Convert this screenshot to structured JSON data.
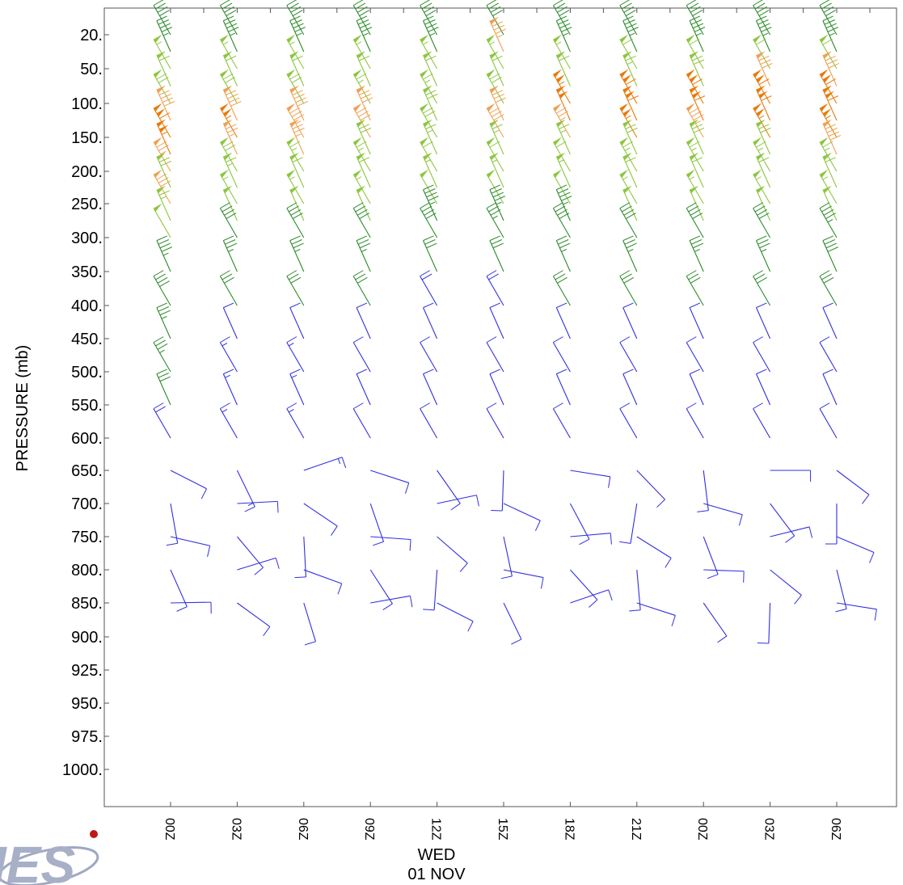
{
  "chart_data": {
    "type": "wind-barb time-height cross section",
    "ylabel": "PRESSURE (mb)",
    "y_ticks": [
      20,
      50,
      100,
      150,
      200,
      250,
      300,
      350,
      400,
      450,
      500,
      550,
      600,
      650,
      700,
      750,
      800,
      850,
      900,
      925,
      950,
      975,
      1000
    ],
    "y_tick_labels": [
      "20.",
      "50.",
      "100.",
      "150.",
      "200.",
      "250.",
      "300.",
      "350.",
      "400.",
      "450.",
      "500.",
      "550.",
      "600.",
      "650.",
      "700.",
      "750.",
      "800.",
      "850.",
      "900.",
      "925.",
      "950.",
      "975.",
      "1000."
    ],
    "x_tick_labels": [
      "00Z",
      "03Z",
      "06Z",
      "09Z",
      "12Z",
      "15Z",
      "18Z",
      "21Z",
      "00Z",
      "03Z",
      "06Z"
    ],
    "x_date_label_line1": "WED",
    "x_date_label_line2": "01 NOV",
    "color_scale": {
      "lt_25kt": "#3030e0",
      "25_50kt": "#2a8a2a",
      "50_75kt": "#8cc63f",
      "75_100kt": "#f0a050",
      "gt_100kt": "#e87a0a"
    },
    "barbs_kt": [
      [
        40,
        45,
        55,
        60,
        70,
        90,
        110,
        105,
        75,
        70,
        80,
        65,
        50,
        45,
        40,
        35,
        35,
        30,
        20,
        10,
        10,
        10,
        10,
        10
      ],
      [
        40,
        45,
        55,
        60,
        70,
        90,
        105,
        75,
        70,
        65,
        55,
        50,
        40,
        35,
        30,
        10,
        15,
        15,
        15,
        15,
        10,
        10,
        10,
        10
      ],
      [
        40,
        45,
        55,
        60,
        70,
        90,
        85,
        75,
        65,
        60,
        55,
        50,
        40,
        35,
        30,
        10,
        15,
        15,
        15,
        15,
        10,
        10,
        10,
        10
      ],
      [
        40,
        45,
        55,
        60,
        65,
        80,
        80,
        70,
        65,
        60,
        55,
        50,
        40,
        35,
        30,
        10,
        10,
        10,
        10,
        10,
        10,
        10,
        10,
        10
      ],
      [
        40,
        45,
        55,
        60,
        65,
        70,
        70,
        65,
        60,
        55,
        50,
        45,
        40,
        30,
        20,
        10,
        10,
        10,
        10,
        10,
        10,
        10,
        10,
        10
      ],
      [
        40,
        85,
        55,
        60,
        70,
        80,
        80,
        65,
        60,
        55,
        50,
        45,
        35,
        30,
        20,
        10,
        10,
        10,
        10,
        10,
        10,
        10,
        10,
        10
      ],
      [
        40,
        45,
        55,
        60,
        105,
        100,
        75,
        65,
        60,
        55,
        50,
        45,
        40,
        35,
        30,
        10,
        10,
        10,
        10,
        10,
        10,
        10,
        10,
        10
      ],
      [
        40,
        45,
        60,
        65,
        110,
        110,
        105,
        70,
        65,
        60,
        55,
        50,
        40,
        35,
        30,
        10,
        10,
        10,
        10,
        10,
        10,
        10,
        10,
        10
      ],
      [
        40,
        45,
        60,
        70,
        110,
        110,
        85,
        70,
        65,
        60,
        55,
        50,
        40,
        35,
        30,
        10,
        10,
        10,
        10,
        10,
        10,
        10,
        10,
        10
      ],
      [
        40,
        45,
        60,
        80,
        110,
        110,
        105,
        70,
        65,
        60,
        55,
        50,
        40,
        35,
        30,
        10,
        10,
        10,
        10,
        10,
        10,
        10,
        10,
        10
      ],
      [
        40,
        45,
        60,
        80,
        110,
        110,
        105,
        90,
        65,
        60,
        55,
        50,
        45,
        40,
        30,
        10,
        10,
        10,
        10,
        10,
        10,
        10,
        10,
        10
      ]
    ]
  },
  "logo": {
    "text": "IES"
  }
}
